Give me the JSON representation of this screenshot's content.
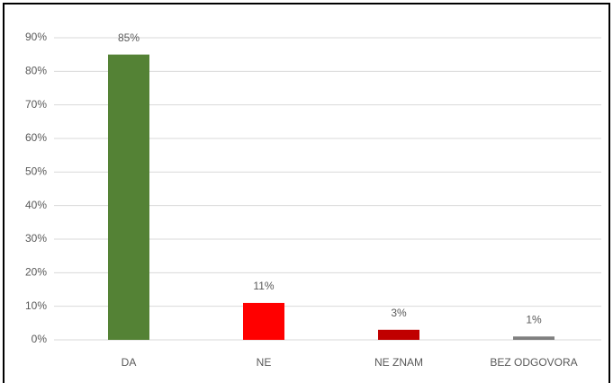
{
  "chart_data": {
    "type": "bar",
    "categories": [
      "DA",
      "NE",
      "NE ZNAM",
      "BEZ ODGOVORA"
    ],
    "values": [
      85,
      11,
      3,
      1
    ],
    "value_labels": [
      "85%",
      "11%",
      "3%",
      "1%"
    ],
    "colors": [
      "#548235",
      "#ff0000",
      "#c00000",
      "#7f7f7f"
    ],
    "ylim": [
      0,
      90
    ],
    "yticks": [
      {
        "value": 0,
        "label": "0%"
      },
      {
        "value": 10,
        "label": "10%"
      },
      {
        "value": 20,
        "label": "20%"
      },
      {
        "value": 30,
        "label": "30%"
      },
      {
        "value": 40,
        "label": "40%"
      },
      {
        "value": 50,
        "label": "50%"
      },
      {
        "value": 60,
        "label": "60%"
      },
      {
        "value": 70,
        "label": "70%"
      },
      {
        "value": 80,
        "label": "80%"
      },
      {
        "value": 90,
        "label": "90%"
      }
    ],
    "grid": true
  }
}
